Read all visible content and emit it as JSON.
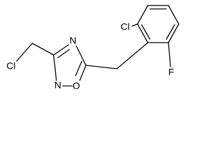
{
  "atoms": [
    "Cl",
    "N",
    "N",
    "O",
    "Cl",
    "F"
  ]
}
